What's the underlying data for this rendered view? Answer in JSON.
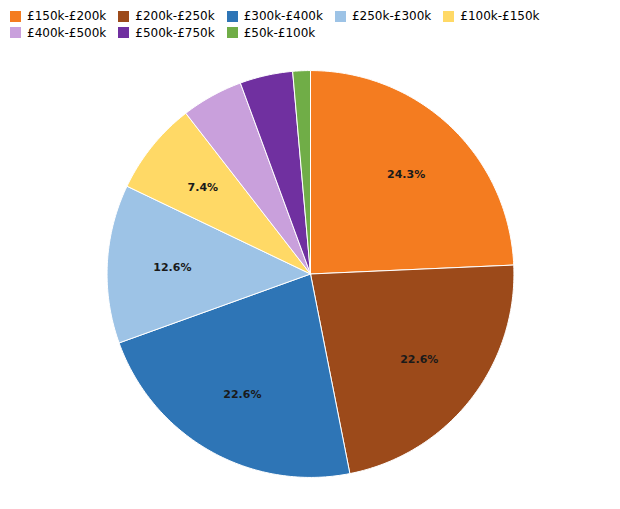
{
  "chart_data": {
    "type": "pie",
    "categories": [
      "£150k-£200k",
      "£200k-£250k",
      "£300k-£400k",
      "£250k-£300k",
      "£100k-£150k",
      "£400k-£500k",
      "£500k-£750k",
      "£50k-£100k"
    ],
    "values": [
      24.3,
      22.6,
      22.6,
      12.6,
      7.4,
      4.9,
      4.2,
      1.4
    ],
    "value_labels": [
      "24.3%",
      "22.6%",
      "22.6%",
      "12.6%",
      "7.4%",
      null,
      null,
      null
    ],
    "colors": [
      "#F47C20",
      "#9C4A1A",
      "#2E75B6",
      "#9DC3E6",
      "#FFD966",
      "#C9A0DC",
      "#7030A0",
      "#70AD47"
    ],
    "data_labels": true,
    "legend": "top"
  }
}
